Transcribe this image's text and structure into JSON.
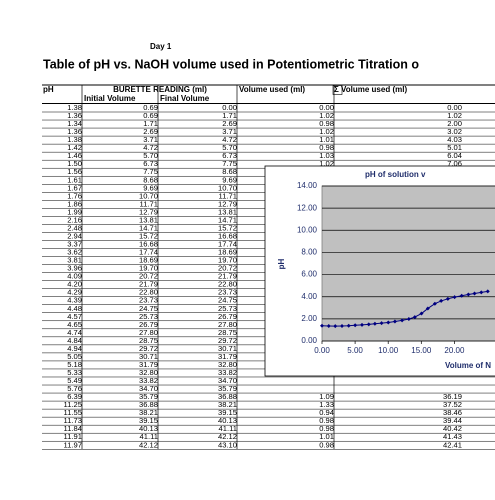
{
  "header": {
    "day": "Day 1",
    "title": "Table of pH vs. NaOH volume used in Potentiometric Titration o"
  },
  "table": {
    "columns": [
      "pH",
      "BURETTE READING (ml)",
      "Volume used (ml)",
      "Σ Volume used (ml)"
    ],
    "subcolumns": [
      "Initial Volume",
      "Final Volume"
    ],
    "rows": [
      [
        "1.38",
        "0.69",
        "0.00",
        "0.00",
        "0.00"
      ],
      [
        "1.36",
        "0.69",
        "1.71",
        "1.02",
        "1.02"
      ],
      [
        "1.34",
        "1.71",
        "2.69",
        "0.98",
        "2.00"
      ],
      [
        "1.36",
        "2.69",
        "3.71",
        "1.02",
        "3.02"
      ],
      [
        "1.38",
        "3.71",
        "4.72",
        "1.01",
        "4.03"
      ],
      [
        "1.42",
        "4.72",
        "5.70",
        "0.98",
        "5.01"
      ],
      [
        "1.46",
        "5.70",
        "6.73",
        "1.03",
        "6.04"
      ],
      [
        "1.50",
        "6.73",
        "7.75",
        "1.02",
        "7.06"
      ],
      [
        "1.56",
        "7.75",
        "8.68"
      ],
      [
        "1.61",
        "8.68",
        "9.69"
      ],
      [
        "1.67",
        "9.69",
        "10.70"
      ],
      [
        "1.76",
        "10.70",
        "11.71"
      ],
      [
        "1.86",
        "11.71",
        "12.79"
      ],
      [
        "1.99",
        "12.79",
        "13.81"
      ],
      [
        "2.16",
        "13.81",
        "14.71"
      ],
      [
        "2.48",
        "14.71",
        "15.72"
      ],
      [
        "2.94",
        "15.72",
        "16.68"
      ],
      [
        "3.37",
        "16.68",
        "17.74"
      ],
      [
        "3.62",
        "17.74",
        "18.69"
      ],
      [
        "3.81",
        "18.69",
        "19.70"
      ],
      [
        "3.96",
        "19.70",
        "20.72"
      ],
      [
        "4.09",
        "20.72",
        "21.79"
      ],
      [
        "4.20",
        "21.79",
        "22.80"
      ],
      [
        "4.29",
        "22.80",
        "23.73"
      ],
      [
        "4.39",
        "23.73",
        "24.75"
      ],
      [
        "4.48",
        "24.75",
        "25.73"
      ],
      [
        "4.57",
        "25.73",
        "26.79"
      ],
      [
        "4.65",
        "26.79",
        "27.80"
      ],
      [
        "4.74",
        "27.80",
        "28.75"
      ],
      [
        "4.84",
        "28.75",
        "29.72"
      ],
      [
        "4.94",
        "29.72",
        "30.71"
      ],
      [
        "5.05",
        "30.71",
        "31.79"
      ],
      [
        "5.18",
        "31.79",
        "32.80"
      ],
      [
        "5.33",
        "32.80",
        "33.82"
      ],
      [
        "5.49",
        "33.82",
        "34.70"
      ],
      [
        "5.76",
        "34.70",
        "35.79"
      ],
      [
        "6.39",
        "35.79",
        "36.88",
        "1.09",
        "36.19"
      ],
      [
        "11.25",
        "36.88",
        "38.21",
        "1.33",
        "37.52"
      ],
      [
        "11.55",
        "38.21",
        "39.15",
        "0.94",
        "38.46"
      ],
      [
        "11.73",
        "39.15",
        "40.13",
        "0.98",
        "39.44"
      ],
      [
        "11.84",
        "40.13",
        "41.11",
        "0.98",
        "40.42"
      ],
      [
        "11.91",
        "41.11",
        "42.12",
        "1.01",
        "41.43"
      ],
      [
        "11.97",
        "42.12",
        "43.10",
        "0.98",
        "42.41"
      ]
    ]
  },
  "chart_data": {
    "type": "line",
    "title": "pH of solution v",
    "x_label": "Volume of N",
    "y_label": "pH",
    "x": [
      0,
      1.02,
      2.0,
      3.02,
      4.03,
      5.01,
      6.04,
      7.06,
      7.99,
      9.0,
      10.01,
      11.02,
      12.1,
      13.12,
      14.02,
      15.03,
      15.99,
      17.05,
      18.0,
      19.01,
      20.03,
      21.1,
      22.11,
      23.04,
      24.06,
      25.04
    ],
    "series": [
      {
        "name": "pH",
        "color": "#000080",
        "values": [
          1.38,
          1.36,
          1.34,
          1.36,
          1.38,
          1.42,
          1.46,
          1.5,
          1.56,
          1.61,
          1.67,
          1.76,
          1.86,
          1.99,
          2.16,
          2.48,
          2.94,
          3.37,
          3.62,
          3.81,
          3.96,
          4.09,
          4.2,
          4.29,
          4.39,
          4.48
        ]
      }
    ],
    "xlim": [
      0,
      45
    ],
    "xticks": [
      {
        "value": 0,
        "label": "0.00"
      },
      {
        "value": 5,
        "label": "5.00"
      },
      {
        "value": 10,
        "label": "10.00"
      },
      {
        "value": 15,
        "label": "15.00"
      },
      {
        "value": 20,
        "label": "20.00"
      }
    ],
    "ylim": [
      0,
      14
    ],
    "yticks": [
      {
        "value": 0,
        "label": "0.00"
      },
      {
        "value": 2,
        "label": "2.00"
      },
      {
        "value": 4,
        "label": "4.00"
      },
      {
        "value": 6,
        "label": "6.00"
      },
      {
        "value": 8,
        "label": "8.00"
      },
      {
        "value": 10,
        "label": "10.00"
      },
      {
        "value": 12,
        "label": "12.00"
      },
      {
        "value": 14,
        "label": "14.00"
      }
    ],
    "grid": true
  }
}
